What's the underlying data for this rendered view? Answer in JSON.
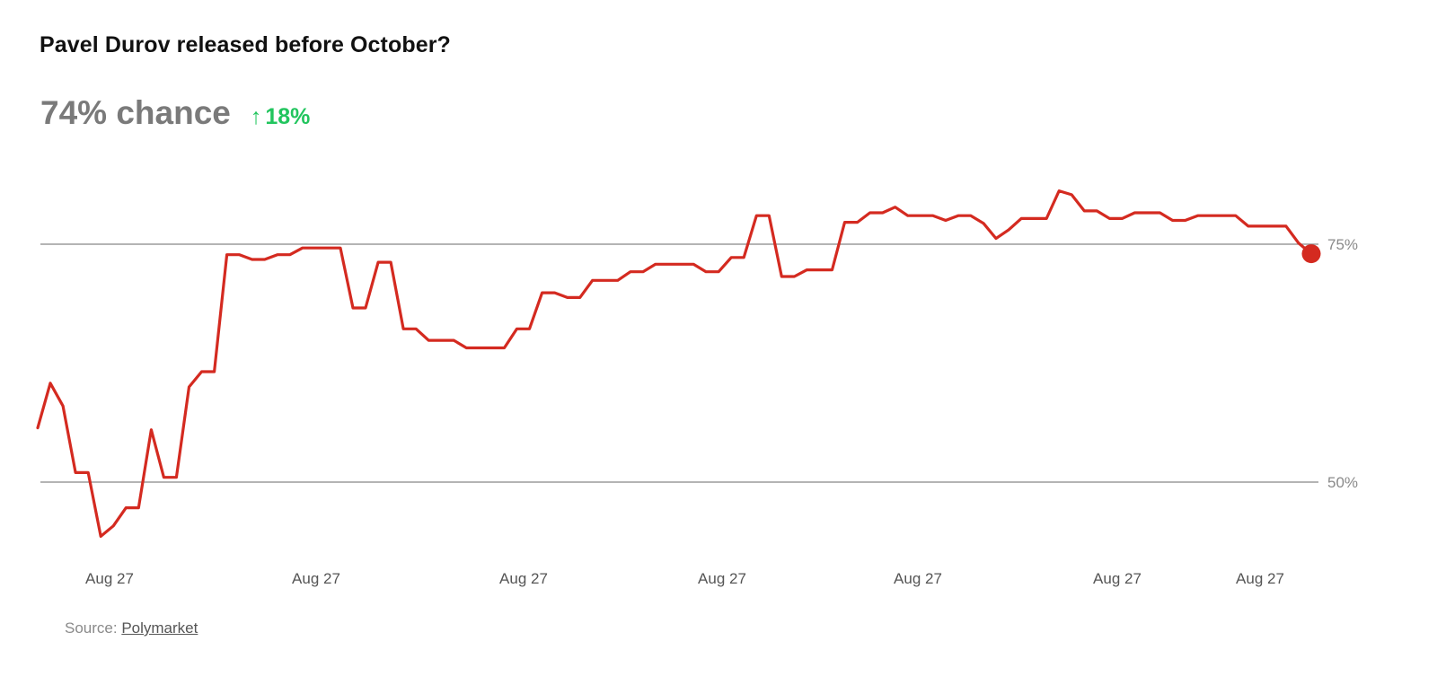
{
  "title": "Pavel Durov released before October?",
  "headline": {
    "chance": "74% chance",
    "change_arrow_icon": "arrow-up-icon",
    "change_arrow": "↑",
    "change": "18%"
  },
  "source": {
    "label": "Source:",
    "link_text": "Polymarket"
  },
  "colors": {
    "line": "#d42a20",
    "marker": "#d42a20",
    "gridline": "#888888",
    "change": "#22c55e"
  },
  "chart_data": {
    "type": "line",
    "title": "Pavel Durov released before October?",
    "xlabel": "",
    "ylabel": "",
    "x_tick_labels": [
      "Aug 27",
      "Aug 27",
      "Aug 27",
      "Aug 27",
      "Aug 27",
      "Aug 27",
      "Aug 27"
    ],
    "y_ticks": [
      {
        "value": 75,
        "label": "75%"
      },
      {
        "value": 50,
        "label": "50%"
      }
    ],
    "ylim": [
      43,
      81
    ],
    "grid": true,
    "legend": "none",
    "series": [
      {
        "values": [
          55.7,
          60.4,
          58.0,
          51.0,
          51.0,
          44.3,
          45.4,
          47.3,
          47.3,
          55.5,
          50.5,
          50.5,
          60.0,
          61.6,
          61.6,
          73.9,
          73.9,
          73.4,
          73.4,
          73.9,
          73.9,
          74.6,
          74.6,
          74.6,
          74.6,
          68.3,
          68.3,
          73.1,
          73.1,
          66.1,
          66.1,
          64.9,
          64.9,
          64.9,
          64.1,
          64.1,
          64.1,
          64.1,
          66.1,
          66.1,
          69.9,
          69.9,
          69.4,
          69.4,
          71.2,
          71.2,
          71.2,
          72.1,
          72.1,
          72.9,
          72.9,
          72.9,
          72.9,
          72.1,
          72.1,
          73.6,
          73.6,
          78.0,
          78.0,
          71.6,
          71.6,
          72.3,
          72.3,
          72.3,
          77.3,
          77.3,
          78.3,
          78.3,
          78.9,
          78.0,
          78.0,
          78.0,
          77.5,
          78.0,
          78.0,
          77.2,
          75.6,
          76.5,
          77.7,
          77.7,
          77.7,
          80.6,
          80.2,
          78.5,
          78.5,
          77.7,
          77.7,
          78.3,
          78.3,
          78.3,
          77.5,
          77.5,
          78.0,
          78.0,
          78.0,
          78.0,
          76.9,
          76.9,
          76.9,
          76.9,
          75.1,
          74.0
        ]
      }
    ],
    "last_value": 74
  }
}
